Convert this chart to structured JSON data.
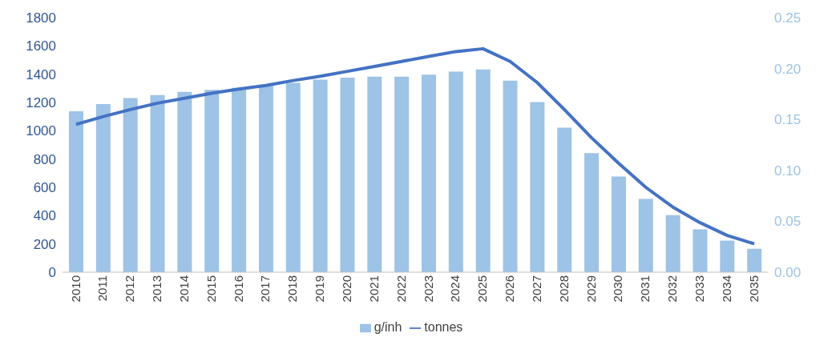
{
  "chart_data": {
    "type": "bar",
    "categories": [
      "2010",
      "2011",
      "2012",
      "2013",
      "2014",
      "2015",
      "2016",
      "2017",
      "2018",
      "2019",
      "2020",
      "2021",
      "2022",
      "2023",
      "2024",
      "2025",
      "2026",
      "2027",
      "2028",
      "2029",
      "2030",
      "2031",
      "2032",
      "2033",
      "2034",
      "2035"
    ],
    "series": [
      {
        "name": "g/inh",
        "axis": "y2",
        "color": "#9dc3e6",
        "values": [
          0.158,
          0.165,
          0.171,
          0.174,
          0.177,
          0.179,
          0.181,
          0.183,
          0.186,
          0.189,
          0.191,
          0.192,
          0.192,
          0.194,
          0.197,
          0.199,
          0.188,
          0.167,
          0.142,
          0.117,
          0.094,
          0.072,
          0.056,
          0.042,
          0.031,
          0.023
        ]
      },
      {
        "name": "tonnes",
        "type": "line",
        "axis": "y",
        "color": "#4472c4",
        "values": [
          1045,
          1100,
          1150,
          1195,
          1230,
          1265,
          1295,
          1320,
          1355,
          1385,
          1420,
          1455,
          1490,
          1525,
          1560,
          1580,
          1490,
          1340,
          1150,
          950,
          770,
          600,
          460,
          350,
          260,
          200
        ]
      }
    ],
    "ylim": [
      0,
      1800
    ],
    "yticks": [
      0,
      200,
      400,
      600,
      800,
      1000,
      1200,
      1400,
      1600,
      1800
    ],
    "y2lim": [
      0,
      0.25
    ],
    "y2ticks": [
      {
        "value": 0,
        "label": "0.00"
      },
      {
        "value": 0.05,
        "label": "0.05"
      },
      {
        "value": 0.1,
        "label": "0.10"
      },
      {
        "value": 0.15,
        "label": "0.15"
      },
      {
        "value": 0.2,
        "label": "0.20"
      },
      {
        "value": 0.25,
        "label": "0.25"
      }
    ],
    "grid": false,
    "legend": "bottom",
    "marker": "none",
    "line_style": "solid"
  }
}
